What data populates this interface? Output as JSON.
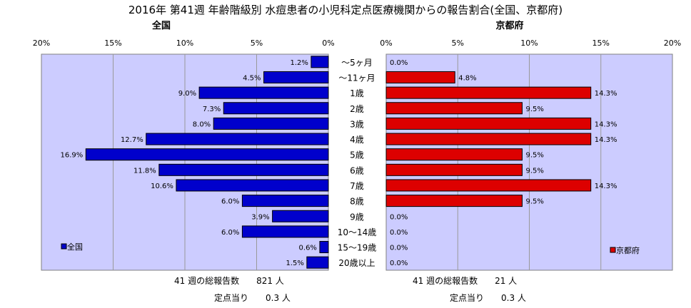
{
  "title": "2016年 第41週 年齢階級別 水痘患者の小児科定点医療機関からの報告割合(全国、京都府)",
  "left_panel": {
    "subtitle": "全国",
    "legend_label": "全国",
    "footer_total": "41 週の総報告数　　821 人",
    "footer_per": "定点当り　　0.3 人"
  },
  "right_panel": {
    "subtitle": "京都府",
    "legend_label": "京都府",
    "footer_total": "41 週の総報告数　　21 人",
    "footer_per": "定点当り　　0.3 人"
  },
  "colors": {
    "plot_bg": "#ccccff",
    "national_bar": "#0000cc",
    "kyoto_bar": "#dd0000",
    "bar_border": "#000000"
  },
  "chart_data": [
    {
      "type": "bar",
      "orientation": "horizontal",
      "direction": "right-to-left",
      "subtitle": "全国",
      "categories": [
        "～5ヶ月",
        "～11ヶ月",
        "1歳",
        "2歳",
        "3歳",
        "4歳",
        "5歳",
        "6歳",
        "7歳",
        "8歳",
        "9歳",
        "10～14歳",
        "15～19歳",
        "20歳以上"
      ],
      "series": [
        {
          "name": "全国",
          "values": [
            1.2,
            4.5,
            9.0,
            7.3,
            8.0,
            12.7,
            16.9,
            11.8,
            10.6,
            6.0,
            3.9,
            6.0,
            0.6,
            1.5
          ],
          "labels": [
            "1.2%",
            "4.5%",
            "9.0%",
            "7.3%",
            "8.0%",
            "12.7%",
            "16.9%",
            "11.8%",
            "10.6%",
            "6.0%",
            "3.9%",
            "6.0%",
            "0.6%",
            "1.5%"
          ]
        }
      ],
      "xlim": [
        0,
        20
      ],
      "ticks": [
        "0%",
        "5%",
        "10%",
        "15%",
        "20%"
      ],
      "grid": true,
      "legend_position": "bottom-left"
    },
    {
      "type": "bar",
      "orientation": "horizontal",
      "direction": "left-to-right",
      "subtitle": "京都府",
      "categories": [
        "～5ヶ月",
        "～11ヶ月",
        "1歳",
        "2歳",
        "3歳",
        "4歳",
        "5歳",
        "6歳",
        "7歳",
        "8歳",
        "9歳",
        "10～14歳",
        "15～19歳",
        "20歳以上"
      ],
      "series": [
        {
          "name": "京都府",
          "values": [
            0.0,
            4.8,
            14.3,
            9.5,
            14.3,
            14.3,
            9.5,
            9.5,
            14.3,
            9.5,
            0.0,
            0.0,
            0.0,
            0.0
          ],
          "labels": [
            "0.0%",
            "4.8%",
            "14.3%",
            "9.5%",
            "14.3%",
            "14.3%",
            "9.5%",
            "9.5%",
            "14.3%",
            "9.5%",
            "0.0%",
            "0.0%",
            "0.0%",
            "0.0%"
          ]
        }
      ],
      "xlim": [
        0,
        20
      ],
      "ticks": [
        "0%",
        "5%",
        "10%",
        "15%",
        "20%"
      ],
      "grid": true,
      "legend_position": "bottom-right"
    }
  ]
}
